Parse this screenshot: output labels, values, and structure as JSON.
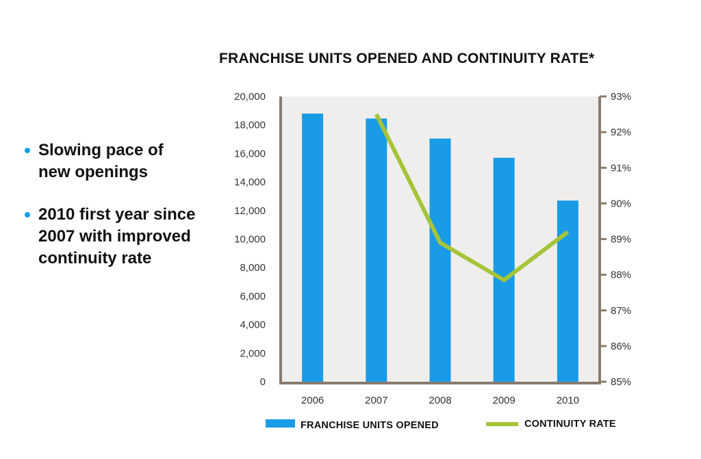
{
  "bullets": [
    {
      "text": "Slowing pace of new openings"
    },
    {
      "text": "2010 first year since 2007 with improved continuity rate"
    }
  ],
  "colors": {
    "bar": "#1a9be6",
    "line": "#a5c43a",
    "axis": "#8a7b6e",
    "plot_bg": "#efeeec"
  },
  "chart_data": {
    "type": "bar",
    "title": "FRANCHISE UNITS OPENED AND CONTINUITY RATE*",
    "categories": [
      "2006",
      "2007",
      "2008",
      "2009",
      "2010"
    ],
    "series": [
      {
        "name": "FRANCHISE UNITS OPENED",
        "type": "bar",
        "axis": "left",
        "values": [
          18800,
          18450,
          17050,
          15700,
          12700
        ]
      },
      {
        "name": "CONTINUITY RATE",
        "type": "line",
        "axis": "right",
        "values": [
          null,
          92.5,
          88.9,
          87.85,
          89.2
        ]
      }
    ],
    "y_left": {
      "ylim": [
        0,
        20000
      ],
      "tick_labels": [
        "0",
        "2,000",
        "4,000",
        "6,000",
        "8,000",
        "10,000",
        "12,000",
        "14,000",
        "16,000",
        "18,000",
        "20,000"
      ]
    },
    "y_right": {
      "ylim": [
        85,
        93
      ],
      "tick_labels": [
        "85%",
        "86%",
        "87%",
        "88%",
        "89%",
        "90%",
        "91%",
        "92%",
        "93%"
      ]
    },
    "legend": {
      "placement": "bottom"
    }
  }
}
